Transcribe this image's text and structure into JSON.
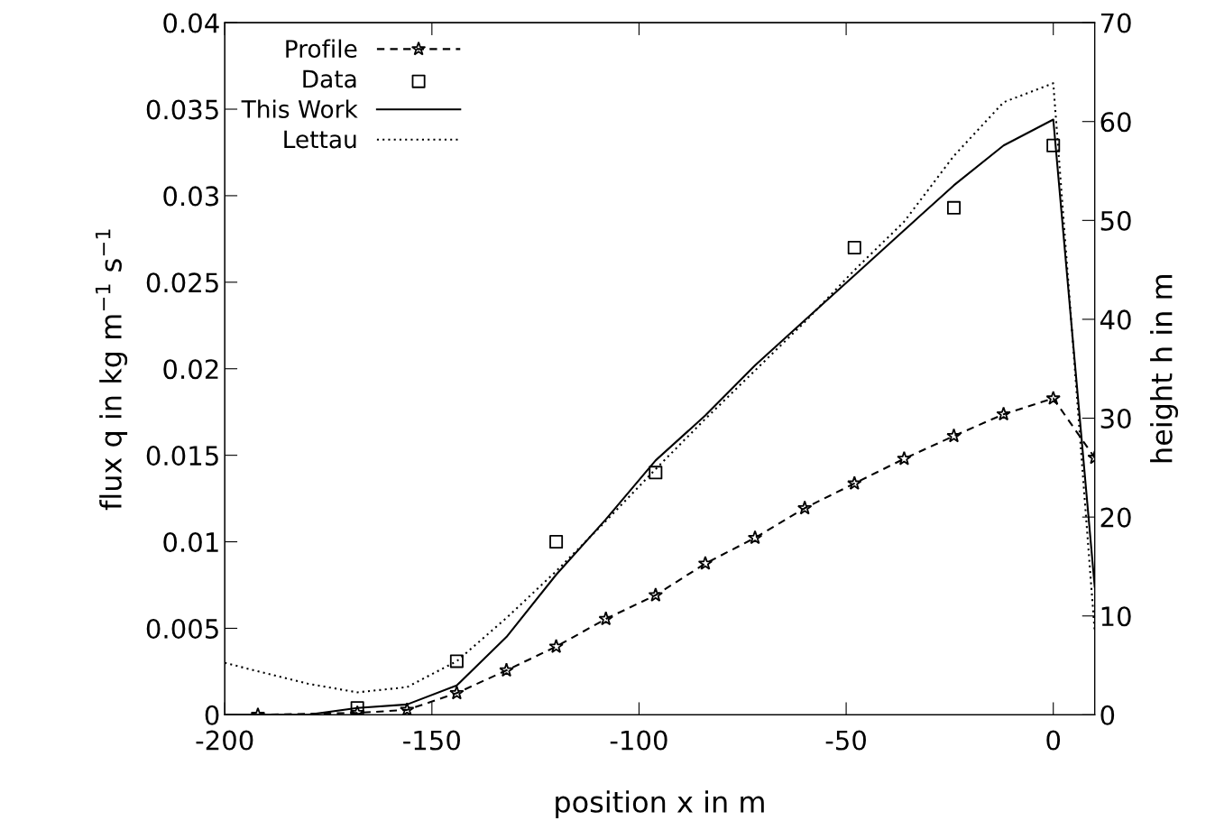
{
  "chart_data": {
    "type": "line",
    "xlabel": "position x in m",
    "ylabel": "flux q in kg m$^{−1}$ s$^{−1}$",
    "y2label": "height h in m",
    "xlim": [
      -200,
      10
    ],
    "xticks": [
      -200,
      -150,
      -100,
      -50,
      0
    ],
    "ylim": [
      0,
      0.04
    ],
    "yticks": [
      0,
      0.005,
      0.01,
      0.015,
      0.02,
      0.025,
      0.03,
      0.035,
      0.04
    ],
    "y2lim": [
      0,
      70
    ],
    "y2ticks": [
      0,
      10,
      20,
      30,
      40,
      50,
      60,
      70
    ],
    "legend": "top left",
    "grid": false,
    "series": [
      {
        "name": "Profile",
        "axis": "y2",
        "color": "#000000",
        "marker": "star",
        "line_style": "dashed",
        "x": [
          -192,
          -168,
          -156,
          -144,
          -132,
          -120,
          -108,
          -96,
          -84,
          -72,
          -60,
          -48,
          -36,
          -24,
          -12,
          0,
          10
        ],
        "values": [
          0,
          0.2,
          0.5,
          2.2,
          4.5,
          6.9,
          9.7,
          12.1,
          15.3,
          17.9,
          20.9,
          23.4,
          25.9,
          28.2,
          30.4,
          32.0,
          26.0
        ]
      },
      {
        "name": "Data",
        "type": "scatter",
        "color": "#000000",
        "marker": "square",
        "x": [
          -168,
          -144,
          -120,
          -96,
          -48,
          -24,
          0
        ],
        "values": [
          0.0004,
          0.0031,
          0.01,
          0.014,
          0.027,
          0.0293,
          0.0329
        ]
      },
      {
        "name": "This Work",
        "color": "#000000",
        "line_style": "solid",
        "x": [
          -200,
          -180,
          -168,
          -156,
          -144,
          -132,
          -120,
          -108,
          -96,
          -84,
          -72,
          -60,
          -48,
          -36,
          -24,
          -12,
          0,
          10
        ],
        "values": [
          0,
          0,
          0.0004,
          0.0006,
          0.0017,
          0.0045,
          0.0081,
          0.0113,
          0.0147,
          0.0173,
          0.0202,
          0.0228,
          0.0254,
          0.028,
          0.0306,
          0.0329,
          0.0344,
          0.0074
        ]
      },
      {
        "name": "Lettau",
        "color": "#000000",
        "line_style": "dotted",
        "x": [
          -200,
          -180,
          -168,
          -156,
          -144,
          -132,
          -120,
          -108,
          -96,
          -84,
          -72,
          -60,
          -48,
          -36,
          -24,
          -12,
          0,
          10
        ],
        "values": [
          0.003,
          0.0018,
          0.0013,
          0.0016,
          0.0031,
          0.0056,
          0.0083,
          0.0112,
          0.0142,
          0.0171,
          0.0199,
          0.0227,
          0.0257,
          0.0285,
          0.0323,
          0.0354,
          0.0365,
          0.0048
        ]
      }
    ]
  }
}
